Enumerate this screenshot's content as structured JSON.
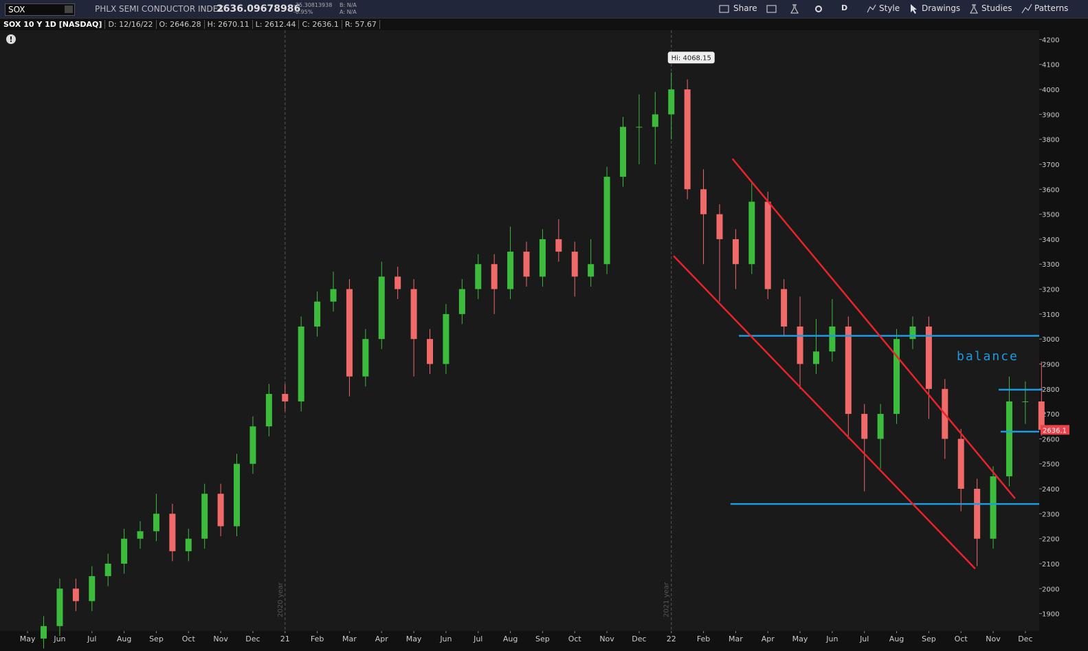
{
  "toolbar": {
    "symbol": "SOX",
    "name": "PHLX SEMI CONDUCTOR INDEX",
    "last": "2636.09678986",
    "change": "-25.30813938",
    "change_pct": "-0.95%",
    "bid": "B: N/A",
    "ask": "A: N/A",
    "buttons": [
      "Share",
      "D",
      "Style",
      "Drawings",
      "Studies",
      "Patterns"
    ]
  },
  "info_bar": [
    "SOX 10 Y 1D [NASDAQ]",
    "D: 12/16/22",
    "O: 2646.28",
    "H: 2670.11",
    "L: 2612.44",
    "C: 2636.1",
    "R: 57.67"
  ],
  "chart_data": {
    "type": "candlestick",
    "hi_label": "Hi: 4068.15",
    "annotation": "balance",
    "up_color": "#3dbb3d",
    "down_color": "#f06a6a",
    "x": [
      4.5,
      5,
      5.5,
      6,
      6.5,
      7,
      7.5,
      8,
      8.5,
      9,
      9.5,
      10,
      10.5,
      11,
      11.5,
      12,
      12.5,
      13,
      13.5,
      14,
      14.5,
      15,
      15.5,
      16,
      16.5,
      17,
      17.5,
      18,
      18.5,
      19,
      19.5,
      20,
      20.5,
      21,
      21.5,
      22,
      22.5,
      23,
      23.5,
      24,
      24.5,
      25,
      25.5,
      26,
      26.5,
      27,
      27.5,
      28,
      28.5,
      29,
      29.5,
      30,
      30.5,
      31,
      31.5,
      32,
      32.5,
      33,
      33.5,
      34,
      34.5,
      35,
      35.5
    ],
    "open": [
      1800,
      1850,
      2000,
      1950,
      2050,
      2100,
      2200,
      2230,
      2300,
      2150,
      2200,
      2380,
      2250,
      2500,
      2650,
      2780,
      2750,
      3050,
      3150,
      3200,
      2850,
      3000,
      3250,
      3200,
      3000,
      2900,
      3100,
      3200,
      3300,
      3200,
      3350,
      3250,
      3400,
      3350,
      3250,
      3300,
      3650,
      3850,
      3850,
      3900,
      4000,
      3600,
      3500,
      3400,
      3300,
      3550,
      3200,
      3050,
      2900,
      2950,
      3050,
      2700,
      2600,
      2700,
      3000,
      3050,
      2800,
      2600,
      2400,
      2200,
      2450,
      2750,
      2750
    ],
    "high": [
      1890,
      2040,
      2040,
      2090,
      2140,
      2240,
      2270,
      2380,
      2340,
      2240,
      2420,
      2420,
      2540,
      2690,
      2820,
      2820,
      3090,
      3190,
      3270,
      3240,
      3040,
      3310,
      3290,
      3240,
      3040,
      3140,
      3240,
      3340,
      3340,
      3450,
      3390,
      3440,
      3480,
      3390,
      3400,
      3690,
      3890,
      3980,
      3990,
      4068.15,
      4040,
      3680,
      3540,
      3440,
      3630,
      3590,
      3240,
      3170,
      3080,
      3160,
      3090,
      2740,
      2740,
      3040,
      3090,
      3090,
      2840,
      2640,
      2440,
      2490,
      2850,
      2830,
      2910
    ],
    "low": [
      1760,
      1810,
      1910,
      1910,
      2010,
      2060,
      2160,
      2190,
      2110,
      2110,
      2160,
      2210,
      2210,
      2460,
      2610,
      2710,
      2710,
      3010,
      3110,
      2770,
      2810,
      2960,
      3160,
      2850,
      2860,
      2860,
      3060,
      3160,
      3100,
      3160,
      3210,
      3210,
      3310,
      3170,
      3210,
      3260,
      3610,
      3700,
      3700,
      3800,
      3560,
      3300,
      3150,
      3200,
      3260,
      3160,
      3010,
      2800,
      2860,
      2910,
      2600,
      2390,
      2480,
      2660,
      2960,
      2680,
      2520,
      2310,
      2090,
      2160,
      2410,
      2660,
      2612.44
    ],
    "close": [
      1850,
      2000,
      1950,
      2050,
      2100,
      2200,
      2230,
      2300,
      2150,
      2200,
      2380,
      2250,
      2500,
      2650,
      2780,
      2750,
      3050,
      3150,
      3200,
      2850,
      3000,
      3250,
      3200,
      3000,
      2900,
      3100,
      3200,
      3300,
      3200,
      3350,
      3250,
      3400,
      3350,
      3250,
      3300,
      3650,
      3850,
      3850,
      3900,
      4000,
      3600,
      3500,
      3400,
      3300,
      3550,
      3200,
      3050,
      2900,
      2950,
      3050,
      2700,
      2600,
      2700,
      3000,
      3050,
      2800,
      2600,
      2400,
      2200,
      2450,
      2750,
      2750,
      2636.1
    ],
    "xlim": [
      3.25,
      35.43
    ],
    "xticks": [
      {
        "value": 4,
        "label": "May"
      },
      {
        "value": 5,
        "label": "Jun"
      },
      {
        "value": 6,
        "label": "Jul"
      },
      {
        "value": 7,
        "label": "Aug"
      },
      {
        "value": 8,
        "label": "Sep"
      },
      {
        "value": 9,
        "label": "Oct"
      },
      {
        "value": 10,
        "label": "Nov"
      },
      {
        "value": 11,
        "label": "Dec"
      },
      {
        "value": 12,
        "label": "21"
      },
      {
        "value": 13,
        "label": "Feb"
      },
      {
        "value": 14,
        "label": "Mar"
      },
      {
        "value": 15,
        "label": "Apr"
      },
      {
        "value": 16,
        "label": "May"
      },
      {
        "value": 17,
        "label": "Jun"
      },
      {
        "value": 18,
        "label": "Jul"
      },
      {
        "value": 19,
        "label": "Aug"
      },
      {
        "value": 20,
        "label": "Sep"
      },
      {
        "value": 21,
        "label": "Oct"
      },
      {
        "value": 22,
        "label": "Nov"
      },
      {
        "value": 23,
        "label": "Dec"
      },
      {
        "value": 24,
        "label": "22"
      },
      {
        "value": 25,
        "label": "Feb"
      },
      {
        "value": 26,
        "label": "Mar"
      },
      {
        "value": 27,
        "label": "Apr"
      },
      {
        "value": 28,
        "label": "May"
      },
      {
        "value": 29,
        "label": "Jun"
      },
      {
        "value": 30,
        "label": "Jul"
      },
      {
        "value": 31,
        "label": "Aug"
      },
      {
        "value": 32,
        "label": "Sep"
      },
      {
        "value": 33,
        "label": "Oct"
      },
      {
        "value": 34,
        "label": "Nov"
      },
      {
        "value": 35,
        "label": "Dec"
      }
    ],
    "ylim": [
      1830,
      4237
    ],
    "yticks": [
      1900,
      2000,
      2100,
      2200,
      2300,
      2400,
      2500,
      2600,
      2700,
      2800,
      2900,
      3000,
      3100,
      3200,
      3300,
      3400,
      3500,
      3600,
      3700,
      3800,
      3900,
      4000,
      4100,
      4200
    ],
    "period_lines": [
      {
        "x": 12,
        "label": "2020 year"
      },
      {
        "x": 24,
        "label": "2021 year"
      }
    ],
    "hlines": [
      {
        "value": 3013,
        "x": [
          26.1,
          35.43
        ],
        "color": "#1e9be0"
      },
      {
        "value": 2339,
        "x": [
          25.84,
          35.43
        ],
        "color": "#1e9be0"
      },
      {
        "value": 2797,
        "x": [
          34.17,
          35.53
        ],
        "color": "#1e9be0"
      },
      {
        "value": 2629,
        "x": [
          34.23,
          35.43
        ],
        "color": "#1e9be0"
      }
    ],
    "trendlines": [
      {
        "x": [
          25.9,
          34.68
        ],
        "y": [
          3722,
          2361
        ],
        "color": "#e8232b"
      },
      {
        "x": [
          24.07,
          33.44
        ],
        "y": [
          3333,
          2080
        ],
        "color": "#e8232b"
      }
    ]
  }
}
